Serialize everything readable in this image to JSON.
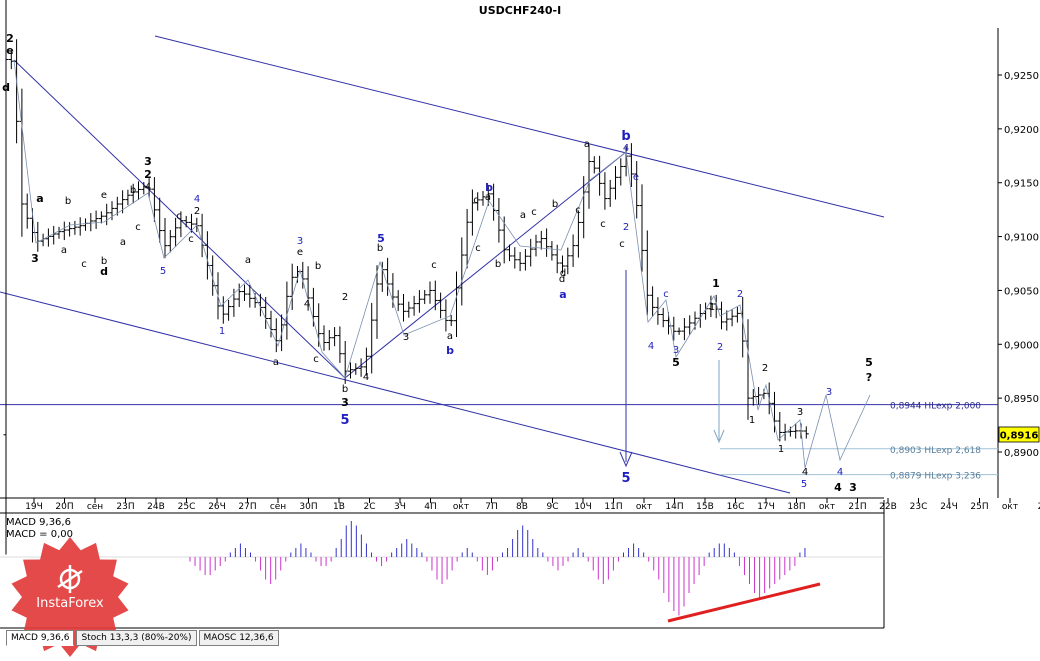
{
  "chart_data": {
    "type": "ohlc",
    "title": "USDCHF240-I",
    "price_axis": {
      "ticks": [
        "0,9250",
        "0,9200",
        "0,9150",
        "0,9100",
        "0,9050",
        "0,9000",
        "0,8950",
        "0,8900"
      ],
      "tick_values": [
        0.925,
        0.92,
        0.915,
        0.91,
        0.905,
        0.9,
        0.895,
        0.89
      ],
      "range": [
        0.886,
        0.9285
      ],
      "current_price": "0,8916",
      "current_value": 0.8916
    },
    "time_axis": {
      "labels": [
        "19Ч",
        "20П",
        "сен",
        "23П",
        "24В",
        "25С",
        "26Ч",
        "27П",
        "сен",
        "30П",
        "1В",
        "2С",
        "3Ч",
        "4П",
        "окт",
        "7П",
        "8В",
        "9С",
        "10Ч",
        "11П",
        "окт",
        "14П",
        "15В",
        "16С",
        "17Ч",
        "18П",
        "окт",
        "21П",
        "22В",
        "23С",
        "24Ч",
        "25П",
        "окт",
        "2"
      ]
    },
    "horizontal_levels": [
      {
        "label": "0,8944 HLexp 2,000",
        "value": 0.8944
      },
      {
        "label": "0,8903 HLexp 2,618",
        "value": 0.8903
      },
      {
        "label": "0,8879 HLexp 3,236",
        "value": 0.8879
      }
    ],
    "wave_labels": [
      "2",
      "e",
      "d",
      "a",
      "b",
      "3",
      "a",
      "c",
      "e",
      "b",
      "d",
      "a",
      "b",
      "c",
      "3",
      "2",
      "4",
      "c",
      "5",
      "4",
      "2",
      "c",
      "1",
      "a",
      "3",
      "e",
      "b",
      "a",
      "4",
      "c",
      "2",
      "b",
      "3",
      "4",
      "5",
      "b",
      "5",
      "3",
      "c",
      "a",
      "b",
      "c",
      "b",
      "a",
      "c",
      "b",
      "a",
      "c",
      "d",
      "a",
      "b",
      "c",
      "a",
      "c",
      "d",
      "c",
      "b",
      "4",
      "e",
      "2",
      "1",
      "c",
      "4",
      "3",
      "5",
      "1",
      "2",
      "2",
      "1",
      "2",
      "1",
      "3",
      "4",
      "5",
      "3",
      "4",
      "5",
      "?",
      "4",
      "3",
      "?"
    ],
    "indicator": {
      "labels": [
        "MACD 9,36,6",
        "MACD = 0,00"
      ],
      "histogram": [
        -1,
        -2,
        -3,
        -4,
        -4,
        -3,
        -2,
        -1,
        1,
        2,
        3,
        2,
        1,
        -1,
        -3,
        -5,
        -6,
        -5,
        -3,
        -1,
        1,
        2,
        3,
        2,
        1,
        -1,
        -2,
        -2,
        -1,
        2,
        4,
        7,
        8,
        7,
        5,
        3,
        1,
        -1,
        -2,
        -1,
        1,
        2,
        3,
        4,
        3,
        2,
        1,
        -1,
        -3,
        -5,
        -6,
        -5,
        -3,
        -1,
        1,
        2,
        1,
        -1,
        -3,
        -4,
        -3,
        -1,
        1,
        2,
        4,
        6,
        7,
        6,
        4,
        2,
        1,
        -1,
        -2,
        -3,
        -2,
        -1,
        1,
        2,
        1,
        -1,
        -3,
        -5,
        -6,
        -5,
        -3,
        -1,
        1,
        2,
        3,
        2,
        1,
        -1,
        -3,
        -5,
        -8,
        -10,
        -12,
        -13,
        -11,
        -8,
        -6,
        -4,
        -2,
        1,
        2,
        3,
        3,
        2,
        1,
        -2,
        -4,
        -6,
        -8,
        -9,
        -8,
        -7,
        -6,
        -5,
        -4,
        -3,
        -2,
        1,
        2
      ]
    }
  },
  "tabs": [
    "MACD 9,36,6",
    "Stoch 13,3,3 (80%-20%)",
    "MAOSC 12,36,6"
  ],
  "logo_text": "InstaForex",
  "colors": {
    "wave_black": "#000000",
    "wave_blue": "#1f1fbf",
    "channel": "#3232a8",
    "hist_pos": "#3333cc",
    "hist_neg": "#cc33cc",
    "signal": "#e02020",
    "price_box": "#ffff00"
  }
}
